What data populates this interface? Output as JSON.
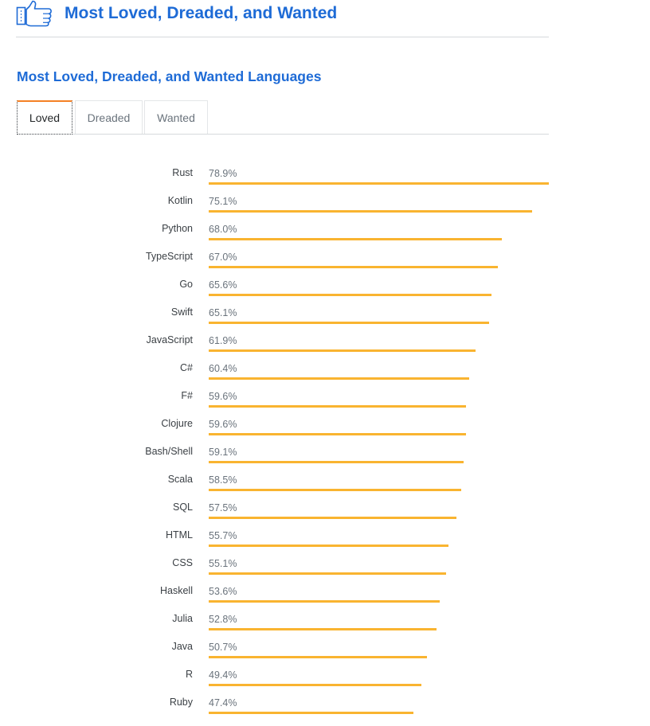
{
  "header": {
    "title": "Most Loved, Dreaded, and Wanted",
    "icon": "thumbs-up-icon"
  },
  "section": {
    "title": "Most Loved, Dreaded, and Wanted Languages"
  },
  "tabs": [
    {
      "label": "Loved",
      "active": true
    },
    {
      "label": "Dreaded",
      "active": false
    },
    {
      "label": "Wanted",
      "active": false
    }
  ],
  "colors": {
    "accent": "#1e6bd6",
    "bar": "#f9b430",
    "tab_active_top": "#f48024"
  },
  "chart_data": {
    "type": "bar",
    "orientation": "horizontal",
    "value_suffix": "%",
    "xlim": [
      0,
      78.9
    ],
    "categories": [
      "Rust",
      "Kotlin",
      "Python",
      "TypeScript",
      "Go",
      "Swift",
      "JavaScript",
      "C#",
      "F#",
      "Clojure",
      "Bash/Shell",
      "Scala",
      "SQL",
      "HTML",
      "CSS",
      "Haskell",
      "Julia",
      "Java",
      "R",
      "Ruby"
    ],
    "values": [
      78.9,
      75.1,
      68.0,
      67.0,
      65.6,
      65.1,
      61.9,
      60.4,
      59.6,
      59.6,
      59.1,
      58.5,
      57.5,
      55.7,
      55.1,
      53.6,
      52.8,
      50.7,
      49.4,
      47.4
    ],
    "value_labels": [
      "78.9%",
      "75.1%",
      "68.0%",
      "67.0%",
      "65.6%",
      "65.1%",
      "61.9%",
      "60.4%",
      "59.6%",
      "59.6%",
      "59.1%",
      "58.5%",
      "57.5%",
      "55.7%",
      "55.1%",
      "53.6%",
      "52.8%",
      "50.7%",
      "49.4%",
      "47.4%"
    ]
  }
}
